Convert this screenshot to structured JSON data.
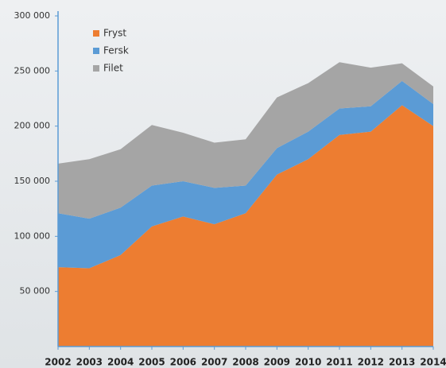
{
  "chart_data": {
    "type": "stacked-area",
    "categories": [
      "2002",
      "2003",
      "2004",
      "2005",
      "2006",
      "2007",
      "2008",
      "2009",
      "2010",
      "2011",
      "2012",
      "2013",
      "2014"
    ],
    "series": [
      {
        "name": "Fryst",
        "color": "#ed7d31",
        "values": [
          72000,
          71000,
          83000,
          109000,
          118000,
          111000,
          121000,
          156000,
          170000,
          192000,
          195000,
          219000,
          200000
        ]
      },
      {
        "name": "Fersk",
        "color": "#5b9bd5",
        "values": [
          49000,
          45000,
          43000,
          37000,
          32000,
          33000,
          25000,
          24000,
          25000,
          24000,
          23000,
          22000,
          20000
        ]
      },
      {
        "name": "Filet",
        "color": "#a5a5a5",
        "values": [
          45000,
          54000,
          53000,
          55000,
          44000,
          41000,
          42000,
          46000,
          44000,
          42000,
          35000,
          16000,
          16000
        ]
      }
    ],
    "ylim": [
      0,
      300000
    ],
    "yticks": [
      {
        "value": 50000,
        "label": "50 000"
      },
      {
        "value": 100000,
        "label": "100 000"
      },
      {
        "value": 150000,
        "label": "150 000"
      },
      {
        "value": 200000,
        "label": "200 000"
      },
      {
        "value": 250000,
        "label": "250 000"
      },
      {
        "value": 300000,
        "label": "300 000"
      }
    ],
    "legend": "upper left"
  }
}
